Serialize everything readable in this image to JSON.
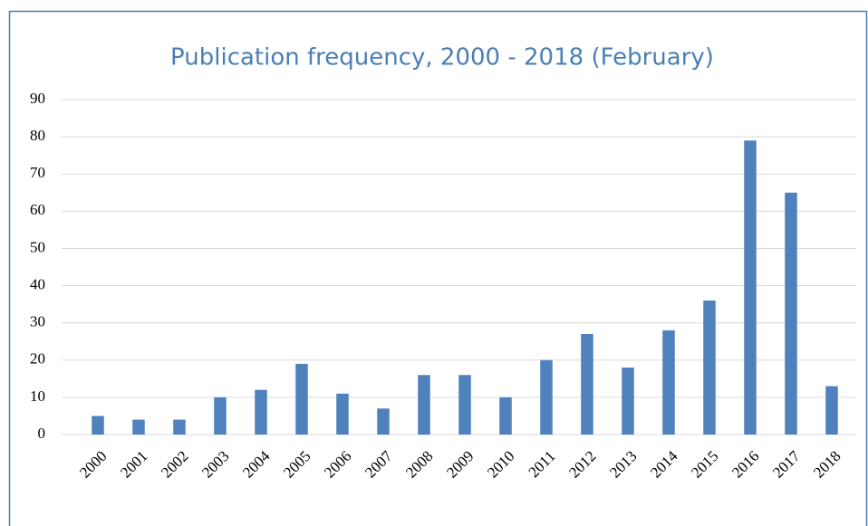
{
  "chart_data": {
    "type": "bar",
    "title": "Publication frequency, 2000 - 2018 (February)",
    "categories": [
      "2000",
      "2001",
      "2002",
      "2003",
      "2004",
      "2005",
      "2006",
      "2007",
      "2008",
      "2009",
      "2010",
      "2011",
      "2012",
      "2013",
      "2014",
      "2015",
      "2016",
      "2017",
      "2018"
    ],
    "values": [
      5,
      4,
      4,
      10,
      12,
      19,
      11,
      7,
      16,
      16,
      10,
      20,
      27,
      18,
      28,
      36,
      79,
      65,
      13
    ],
    "color": "#4f81bd",
    "ylim": [
      0,
      90
    ],
    "yticks": [
      0,
      10,
      20,
      30,
      40,
      50,
      60,
      70,
      80,
      90
    ],
    "grid": true
  }
}
